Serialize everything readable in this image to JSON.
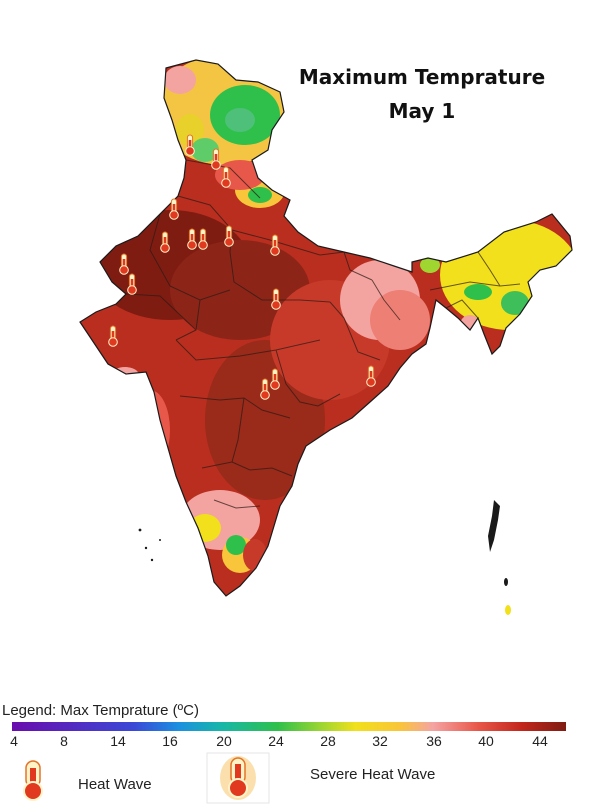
{
  "title": {
    "line1": "Maximum Temprature",
    "line2": "May 1"
  },
  "legend": {
    "title": "Legend: Max Temprature (ºC)",
    "ticks": [
      "4",
      "8",
      "14",
      "16",
      "20",
      "24",
      "28",
      "32",
      "36",
      "40",
      "44"
    ],
    "heat_wave_label": "Heat Wave",
    "severe_heat_wave_label": "Severe Heat Wave"
  },
  "colors": {
    "extreme": "#7f1c12",
    "very_hot": "#a82a1c",
    "hot": "#c73a2a",
    "warm": "#e8584a",
    "mild": "#f3a3a0",
    "moderate": "#f1e01b",
    "cool": "#2fc04b"
  },
  "markers": {
    "heat_wave_icon": "thermometer-icon",
    "severe_heat_wave_icon": "thermometer-glow-icon"
  }
}
